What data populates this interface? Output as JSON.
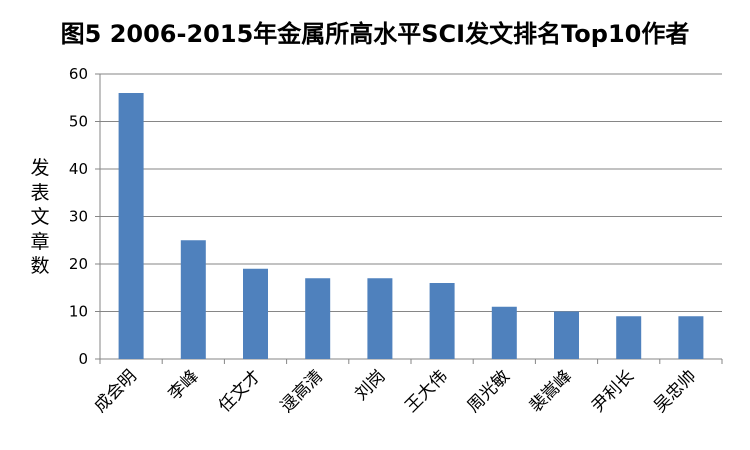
{
  "chart_data": {
    "type": "bar",
    "title": "图5 2006-2015年金属所高水平SCI发文排名Top10作者",
    "xlabel": "",
    "ylabel": "发表文章数",
    "categories": [
      "成会明",
      "李峰",
      "任文才",
      "逯高清",
      "刘岗",
      "王大伟",
      "周光敏",
      "裴嵩峰",
      "尹利长",
      "吴忠帅"
    ],
    "values": [
      56,
      25,
      19,
      17,
      17,
      16,
      11,
      10,
      9,
      9
    ],
    "ylim": [
      0,
      60
    ],
    "yticks": [
      0,
      10,
      20,
      30,
      40,
      50,
      60
    ],
    "grid": true,
    "legend": "none",
    "colors": {
      "bar": "#4F81BD",
      "grid": "#868686",
      "axis": "#868686"
    }
  }
}
